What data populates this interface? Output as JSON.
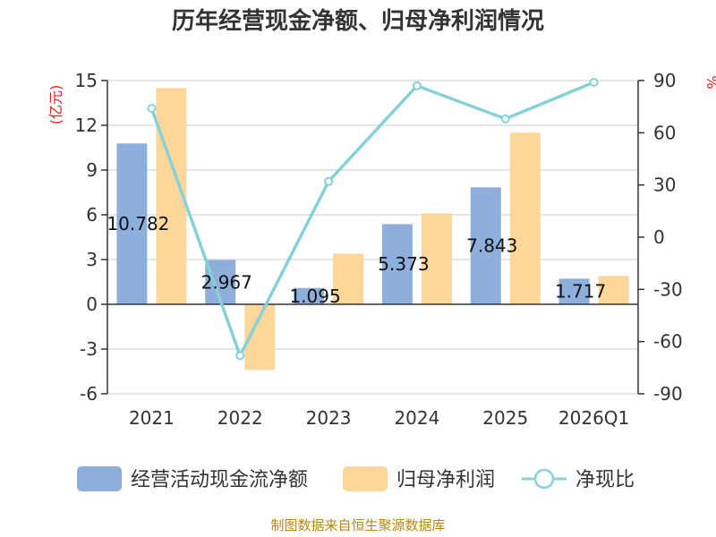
{
  "chart_data": {
    "type": "bar",
    "title": "历年经营现金净额、归母净利润情况",
    "categories": [
      "2021",
      "2022",
      "2023",
      "2024",
      "2025",
      "2026Q1"
    ],
    "left_axis": {
      "unit": "(亿元)",
      "ylim": [
        -6,
        15
      ],
      "ticks": [
        15,
        12,
        9,
        6,
        3,
        0,
        -3,
        -6
      ]
    },
    "right_axis": {
      "unit": "%",
      "ylim": [
        -90,
        90
      ],
      "ticks": [
        90,
        60,
        30,
        0,
        -30,
        -60,
        -90
      ]
    },
    "series": [
      {
        "name": "经营活动现金流净额",
        "type": "bar",
        "axis": "left",
        "color": "#8eaedb",
        "values": [
          10.782,
          2.967,
          1.095,
          5.373,
          7.843,
          1.717
        ],
        "labels": [
          "10.782",
          "2.967",
          "1.095",
          "5.373",
          "7.843",
          "1.717"
        ]
      },
      {
        "name": "归母净利润",
        "type": "bar",
        "axis": "left",
        "color": "#fdd799",
        "values": [
          14.5,
          -4.4,
          3.4,
          6.1,
          11.5,
          1.9
        ]
      },
      {
        "name": "净现比",
        "type": "line",
        "axis": "right",
        "color": "#86d1d8",
        "values": [
          74,
          -68,
          32,
          87,
          68,
          89
        ]
      }
    ],
    "legend_position": "bottom"
  },
  "source": "制图数据来自恒生聚源数据库"
}
